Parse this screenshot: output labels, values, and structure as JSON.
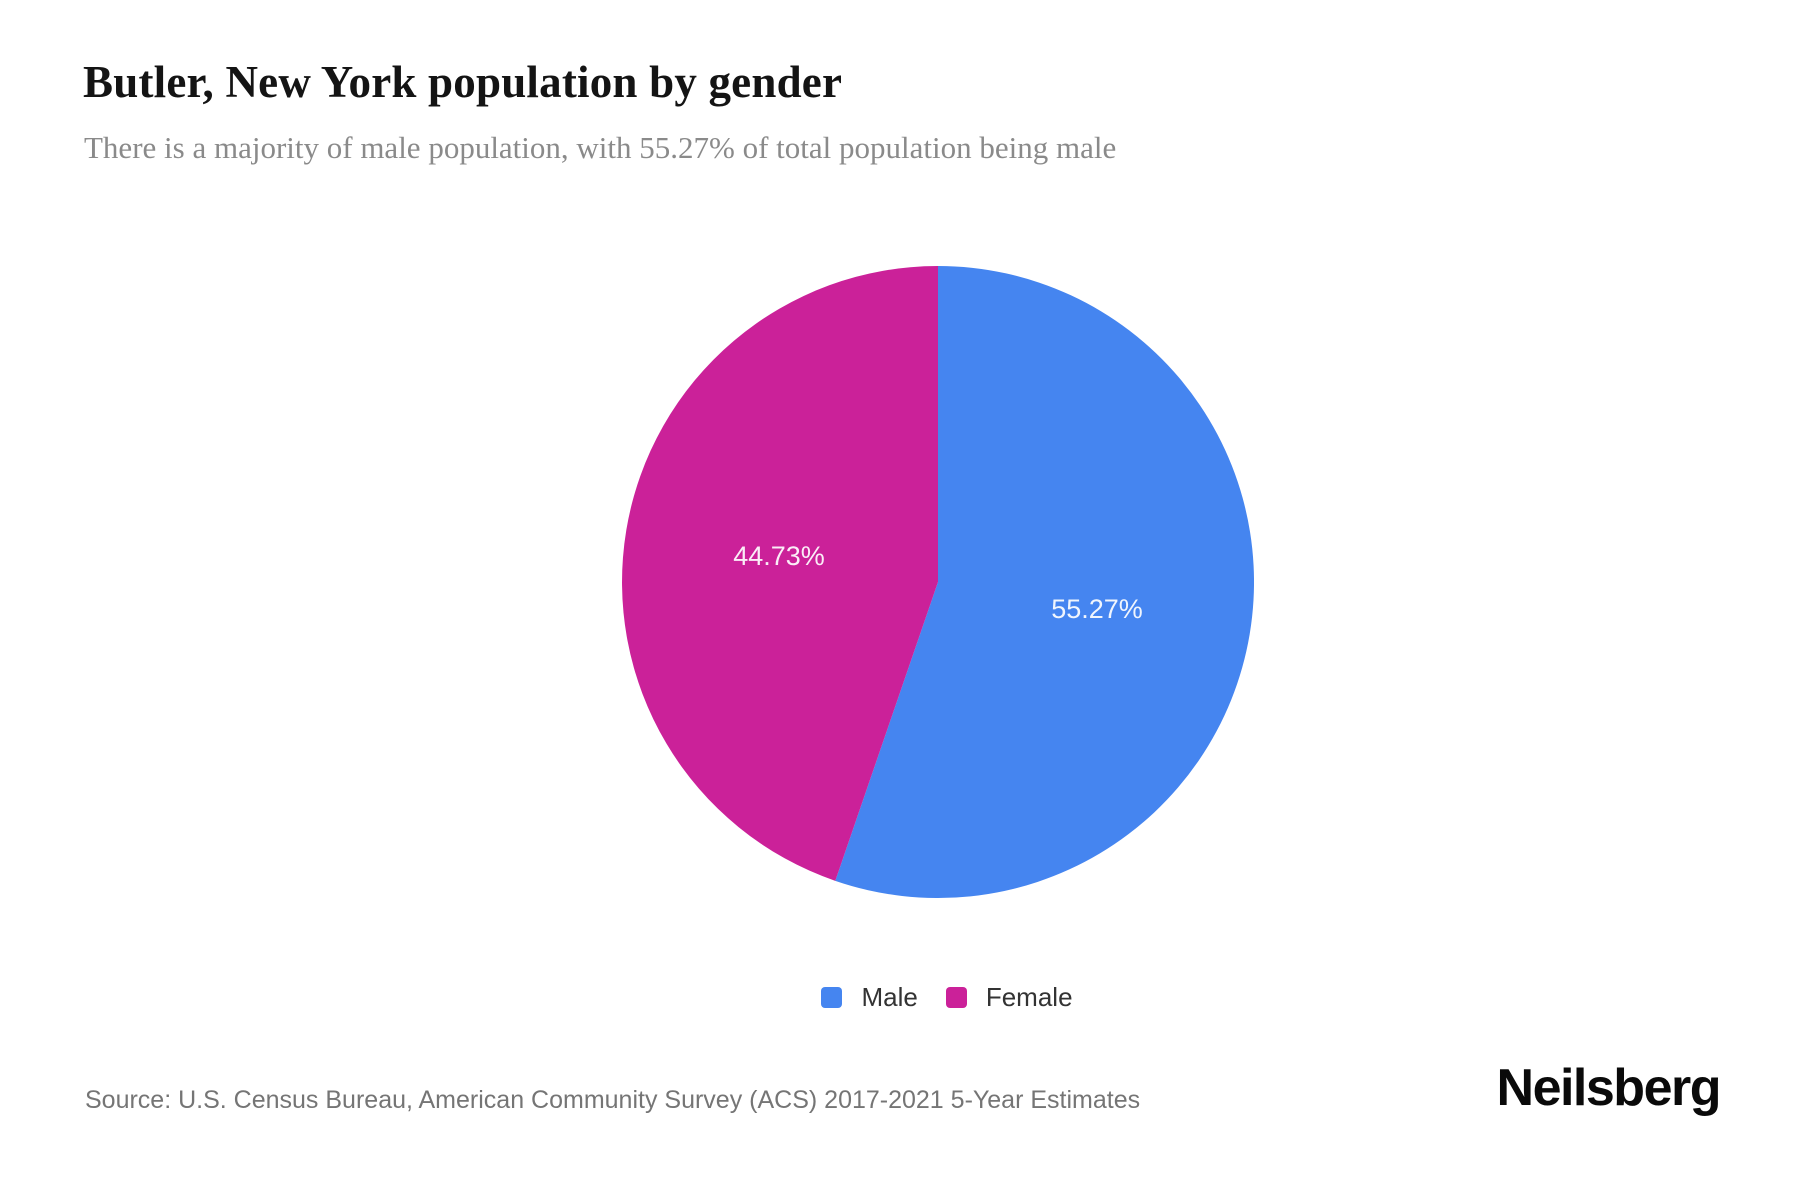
{
  "header": {
    "title": "Butler, New York population by gender",
    "subtitle": "There is a majority of male population, with 55.27% of total population being male"
  },
  "chart_data": {
    "type": "pie",
    "title": "Butler, New York population by gender",
    "start_angle_deg": 0,
    "direction": "clockwise",
    "label_color": "#ffffff",
    "legend_position": "bottom",
    "series": [
      {
        "name": "Male",
        "value": 55.27,
        "label": "55.27%",
        "color": "#4585F0"
      },
      {
        "name": "Female",
        "value": 44.73,
        "label": "44.73%",
        "color": "#CB2199"
      }
    ]
  },
  "legend": {
    "items": [
      {
        "label": "Male",
        "color": "#4585F0"
      },
      {
        "label": "Female",
        "color": "#CB2199"
      }
    ]
  },
  "footer": {
    "source": "Source: U.S. Census Bureau, American Community Survey (ACS) 2017-2021 5-Year Estimates",
    "brand": "Neilsberg"
  }
}
